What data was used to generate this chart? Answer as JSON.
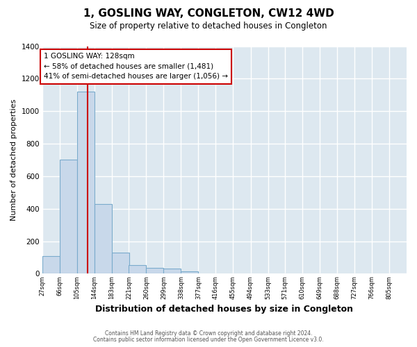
{
  "title": "1, GOSLING WAY, CONGLETON, CW12 4WD",
  "subtitle": "Size of property relative to detached houses in Congleton",
  "xlabel": "Distribution of detached houses by size in Congleton",
  "ylabel": "Number of detached properties",
  "bin_labels": [
    "27sqm",
    "66sqm",
    "105sqm",
    "144sqm",
    "183sqm",
    "221sqm",
    "260sqm",
    "299sqm",
    "338sqm",
    "377sqm",
    "416sqm",
    "455sqm",
    "494sqm",
    "533sqm",
    "571sqm",
    "610sqm",
    "649sqm",
    "688sqm",
    "727sqm",
    "766sqm",
    "805sqm"
  ],
  "bin_edges": [
    27,
    66,
    105,
    144,
    183,
    221,
    260,
    299,
    338,
    377,
    416,
    455,
    494,
    533,
    571,
    610,
    649,
    688,
    727,
    766,
    805
  ],
  "bar_heights": [
    110,
    700,
    1120,
    430,
    130,
    55,
    35,
    30,
    15,
    0,
    0,
    0,
    0,
    0,
    0,
    0,
    0,
    0,
    0,
    0
  ],
  "bar_color": "#c8d8ea",
  "bar_edge_color": "#7aabcc",
  "property_size": 128,
  "red_line_color": "#cc0000",
  "annotation_title": "1 GOSLING WAY: 128sqm",
  "annotation_line1": "← 58% of detached houses are smaller (1,481)",
  "annotation_line2": "41% of semi-detached houses are larger (1,056) →",
  "annotation_box_edge": "#cc0000",
  "ylim": [
    0,
    1400
  ],
  "yticks": [
    0,
    200,
    400,
    600,
    800,
    1000,
    1200,
    1400
  ],
  "footer_line1": "Contains HM Land Registry data © Crown copyright and database right 2024.",
  "footer_line2": "Contains public sector information licensed under the Open Government Licence v3.0.",
  "fig_bg_color": "#ffffff",
  "plot_bg_color": "#dde8f0",
  "grid_color": "#ffffff"
}
